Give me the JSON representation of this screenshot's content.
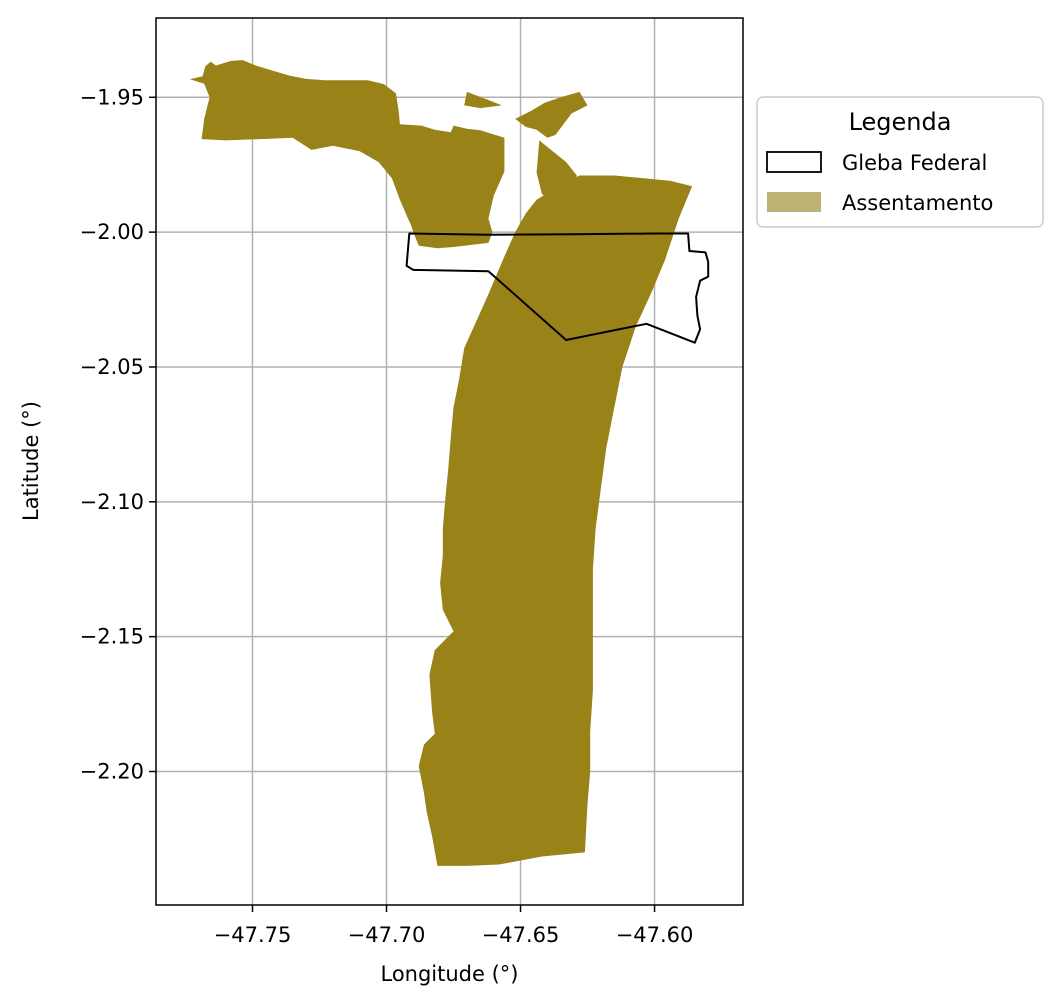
{
  "chart_data": {
    "type": "map",
    "xlabel": "Longitude (°)",
    "ylabel": "Latitude (°)",
    "xlim": [
      -47.786,
      -47.567
    ],
    "ylim": [
      -2.2495,
      -1.9206
    ],
    "xticks": [
      -47.75,
      -47.7,
      -47.65,
      -47.6
    ],
    "xtick_labels": [
      "−47.75",
      "−47.70",
      "−47.65",
      "−47.60"
    ],
    "yticks": [
      -1.95,
      -2.0,
      -2.05,
      -2.1,
      -2.15,
      -2.2
    ],
    "ytick_labels": [
      "−1.95",
      "−2.00",
      "−2.05",
      "−2.10",
      "−2.15",
      "−2.20"
    ],
    "grid": true,
    "legend": {
      "title": "Legenda",
      "placement": "outside-top-right",
      "entries": [
        {
          "label": "Gleba Federal",
          "style": "outline",
          "color": "#000000"
        },
        {
          "label": "Assentamento",
          "style": "fill",
          "color": "#beb174"
        }
      ]
    },
    "layers": [
      {
        "name": "Assentamento",
        "color": "#998217",
        "polygons": [
          [
            [
              -47.7734,
              -1.9433
            ],
            [
              -47.7686,
              -1.9422
            ],
            [
              -47.7676,
              -1.9385
            ],
            [
              -47.7656,
              -1.9368
            ],
            [
              -47.7636,
              -1.9382
            ],
            [
              -47.758,
              -1.9365
            ],
            [
              -47.7536,
              -1.9362
            ],
            [
              -47.7488,
              -1.9382
            ],
            [
              -47.743,
              -1.94
            ],
            [
              -47.736,
              -1.942
            ],
            [
              -47.73,
              -1.9432
            ],
            [
              -47.723,
              -1.9437
            ],
            [
              -47.7148,
              -1.9437
            ],
            [
              -47.707,
              -1.9437
            ],
            [
              -47.701,
              -1.9451
            ],
            [
              -47.6965,
              -1.9485
            ],
            [
              -47.6955,
              -1.955
            ],
            [
              -47.695,
              -1.96
            ],
            [
              -47.687,
              -1.9605
            ],
            [
              -47.682,
              -1.962
            ],
            [
              -47.676,
              -1.963
            ],
            [
              -47.675,
              -1.9605
            ],
            [
              -47.67,
              -1.9617
            ],
            [
              -47.665,
              -1.9622
            ],
            [
              -47.656,
              -1.965
            ],
            [
              -47.656,
              -1.9775
            ],
            [
              -47.66,
              -1.9865
            ],
            [
              -47.662,
              -1.995
            ],
            [
              -47.6605,
              -2.0
            ],
            [
              -47.662,
              -2.004
            ],
            [
              -47.675,
              -2.0055
            ],
            [
              -47.681,
              -2.006
            ],
            [
              -47.688,
              -2.005
            ],
            [
              -47.69,
              -2.0
            ],
            [
              -47.691,
              -1.997
            ],
            [
              -47.692,
              -1.995
            ],
            [
              -47.695,
              -1.988
            ],
            [
              -47.698,
              -1.98
            ],
            [
              -47.703,
              -1.974
            ],
            [
              -47.71,
              -1.97
            ],
            [
              -47.72,
              -1.968
            ],
            [
              -47.728,
              -1.9695
            ],
            [
              -47.735,
              -1.965
            ],
            [
              -47.747,
              -1.9655
            ],
            [
              -47.76,
              -1.966
            ],
            [
              -47.769,
              -1.9655
            ],
            [
              -47.768,
              -1.958
            ],
            [
              -47.766,
              -1.95
            ],
            [
              -47.768,
              -1.945
            ]
          ],
          [
            [
              -47.628,
              -1.979
            ],
            [
              -47.615,
              -1.979
            ],
            [
              -47.604,
              -1.98
            ],
            [
              -47.594,
              -1.981
            ],
            [
              -47.586,
              -1.983
            ],
            [
              -47.591,
              -1.995
            ],
            [
              -47.596,
              -2.01
            ],
            [
              -47.601,
              -2.022
            ],
            [
              -47.607,
              -2.035
            ],
            [
              -47.612,
              -2.05
            ],
            [
              -47.615,
              -2.065
            ],
            [
              -47.618,
              -2.08
            ],
            [
              -47.62,
              -2.095
            ],
            [
              -47.622,
              -2.11
            ],
            [
              -47.623,
              -2.125
            ],
            [
              -47.623,
              -2.14
            ],
            [
              -47.623,
              -2.155
            ],
            [
              -47.623,
              -2.17
            ],
            [
              -47.624,
              -2.185
            ],
            [
              -47.624,
              -2.2
            ],
            [
              -47.625,
              -2.212
            ],
            [
              -47.626,
              -2.23
            ],
            [
              -47.642,
              -2.2315
            ],
            [
              -47.658,
              -2.2345
            ],
            [
              -47.67,
              -2.235
            ],
            [
              -47.681,
              -2.235
            ],
            [
              -47.683,
              -2.224
            ],
            [
              -47.685,
              -2.215
            ],
            [
              -47.686,
              -2.208
            ],
            [
              -47.688,
              -2.198
            ],
            [
              -47.686,
              -2.19
            ],
            [
              -47.682,
              -2.186
            ],
            [
              -47.683,
              -2.178
            ],
            [
              -47.684,
              -2.164
            ],
            [
              -47.682,
              -2.155
            ],
            [
              -47.675,
              -2.148
            ],
            [
              -47.679,
              -2.14
            ],
            [
              -47.68,
              -2.13
            ],
            [
              -47.679,
              -2.12
            ],
            [
              -47.679,
              -2.11
            ],
            [
              -47.678,
              -2.098
            ],
            [
              -47.677,
              -2.088
            ],
            [
              -47.676,
              -2.076
            ],
            [
              -47.675,
              -2.065
            ],
            [
              -47.673,
              -2.055
            ],
            [
              -47.671,
              -2.043
            ],
            [
              -47.666,
              -2.032
            ],
            [
              -47.662,
              -2.023
            ],
            [
              -47.659,
              -2.016
            ],
            [
              -47.656,
              -2.009
            ],
            [
              -47.652,
              -2.0
            ],
            [
              -47.648,
              -1.993
            ],
            [
              -47.644,
              -1.988
            ],
            [
              -47.636,
              -1.983
            ],
            [
              -47.63,
              -1.98
            ]
          ],
          [
            [
              -47.652,
              -1.958
            ],
            [
              -47.646,
              -1.955
            ],
            [
              -47.641,
              -1.952
            ],
            [
              -47.635,
              -1.95
            ],
            [
              -47.628,
              -1.948
            ],
            [
              -47.625,
              -1.953
            ],
            [
              -47.631,
              -1.956
            ],
            [
              -47.634,
              -1.96
            ],
            [
              -47.637,
              -1.964
            ],
            [
              -47.64,
              -1.965
            ],
            [
              -47.644,
              -1.962
            ],
            [
              -47.648,
              -1.961
            ]
          ],
          [
            [
              -47.643,
              -1.966
            ],
            [
              -47.638,
              -1.97
            ],
            [
              -47.633,
              -1.974
            ],
            [
              -47.629,
              -1.979
            ],
            [
              -47.631,
              -1.987
            ],
            [
              -47.636,
              -1.988
            ],
            [
              -47.642,
              -1.986
            ],
            [
              -47.644,
              -1.978
            ]
          ],
          [
            [
              -47.67,
              -1.948
            ],
            [
              -47.662,
              -1.951
            ],
            [
              -47.657,
              -1.953
            ],
            [
              -47.665,
              -1.954
            ],
            [
              -47.671,
              -1.953
            ]
          ]
        ]
      },
      {
        "name": "Gleba Federal",
        "color": "#000000",
        "polygons": [
          [
            [
              -47.6915,
              -2.0005
            ],
            [
              -47.662,
              -2.001
            ],
            [
              -47.63,
              -2.0008
            ],
            [
              -47.6,
              -2.0005
            ],
            [
              -47.5875,
              -2.0005
            ],
            [
              -47.587,
              -2.007
            ],
            [
              -47.581,
              -2.0075
            ],
            [
              -47.58,
              -2.011
            ],
            [
              -47.58,
              -2.0165
            ],
            [
              -47.583,
              -2.018
            ],
            [
              -47.5845,
              -2.024
            ],
            [
              -47.584,
              -2.031
            ],
            [
              -47.583,
              -2.036
            ],
            [
              -47.585,
              -2.041
            ],
            [
              -47.603,
              -2.034
            ],
            [
              -47.633,
              -2.04
            ],
            [
              -47.662,
              -2.0145
            ],
            [
              -47.69,
              -2.014
            ],
            [
              -47.6925,
              -2.0125
            ]
          ]
        ]
      }
    ]
  }
}
